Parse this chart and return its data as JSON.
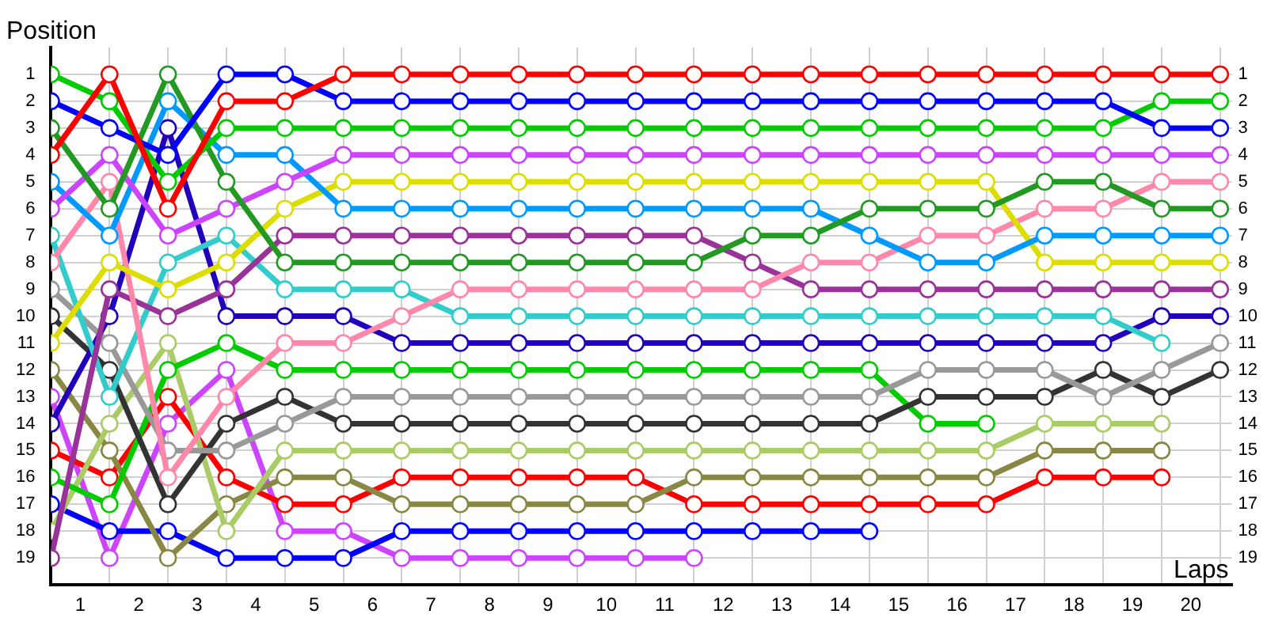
{
  "chart_data": {
    "type": "line",
    "xlabel": "Laps",
    "ylabel": "Position",
    "x": [
      0,
      1,
      2,
      3,
      4,
      5,
      6,
      7,
      8,
      9,
      10,
      11,
      12,
      13,
      14,
      15,
      16,
      17,
      18,
      19,
      20
    ],
    "xlim": [
      0,
      20.2
    ],
    "xticks": [
      {
        "value": 0,
        "label": null
      },
      {
        "value": 0.5,
        "label": "1"
      },
      {
        "value": 1,
        "label": null
      },
      {
        "value": 1.5,
        "label": "2"
      },
      {
        "value": 2,
        "label": null
      },
      {
        "value": 2.5,
        "label": "3"
      },
      {
        "value": 3,
        "label": null
      },
      {
        "value": 3.5,
        "label": "4"
      },
      {
        "value": 4,
        "label": null
      },
      {
        "value": 4.5,
        "label": "5"
      },
      {
        "value": 5,
        "label": null
      },
      {
        "value": 5.5,
        "label": "6"
      },
      {
        "value": 6,
        "label": null
      },
      {
        "value": 6.5,
        "label": "7"
      },
      {
        "value": 7,
        "label": null
      },
      {
        "value": 7.5,
        "label": "8"
      },
      {
        "value": 8,
        "label": null
      },
      {
        "value": 8.5,
        "label": "9"
      },
      {
        "value": 9,
        "label": null
      },
      {
        "value": 9.5,
        "label": "10"
      },
      {
        "value": 10,
        "label": null
      },
      {
        "value": 10.5,
        "label": "11"
      },
      {
        "value": 11,
        "label": null
      },
      {
        "value": 11.5,
        "label": "12"
      },
      {
        "value": 12,
        "label": null
      },
      {
        "value": 12.5,
        "label": "13"
      },
      {
        "value": 13,
        "label": null
      },
      {
        "value": 13.5,
        "label": "14"
      },
      {
        "value": 14,
        "label": null
      },
      {
        "value": 14.5,
        "label": "15"
      },
      {
        "value": 15,
        "label": null
      },
      {
        "value": 15.5,
        "label": "16"
      },
      {
        "value": 16,
        "label": null
      },
      {
        "value": 16.5,
        "label": "17"
      },
      {
        "value": 17,
        "label": null
      },
      {
        "value": 17.5,
        "label": "18"
      },
      {
        "value": 18,
        "label": null
      },
      {
        "value": 18.5,
        "label": "19"
      },
      {
        "value": 19,
        "label": null
      },
      {
        "value": 19.5,
        "label": "20"
      },
      {
        "value": 20,
        "label": null
      }
    ],
    "ylim": [
      20,
      0
    ],
    "yticks": [
      1,
      2,
      3,
      4,
      5,
      6,
      7,
      8,
      9,
      10,
      11,
      12,
      13,
      14,
      15,
      16,
      17,
      18,
      19
    ],
    "y2lim": [
      20,
      0
    ],
    "y2ticks": [
      1,
      2,
      3,
      4,
      5,
      6,
      7,
      8,
      9,
      10,
      11,
      12,
      13,
      14,
      15,
      16,
      17,
      18,
      19
    ],
    "grid": true,
    "legend": false,
    "marker": "circle",
    "line_style": "solid",
    "series": [
      {
        "color": "#ff0000",
        "values": [
          4,
          1,
          6,
          2,
          2,
          1,
          1,
          1,
          1,
          1,
          1,
          1,
          1,
          1,
          1,
          1,
          1,
          1,
          1,
          1,
          1
        ]
      },
      {
        "color": "#0000ff",
        "values": [
          2,
          3,
          4,
          1,
          1,
          2,
          2,
          2,
          2,
          2,
          2,
          2,
          2,
          2,
          2,
          2,
          2,
          2,
          2,
          3,
          3
        ]
      },
      {
        "color": "#00cc00",
        "values": [
          1,
          2,
          5,
          3,
          3,
          3,
          3,
          3,
          3,
          3,
          3,
          3,
          3,
          3,
          3,
          3,
          3,
          3,
          3,
          2,
          2
        ]
      },
      {
        "color": "#229922",
        "values": [
          3,
          6,
          1,
          5,
          8,
          8,
          8,
          8,
          8,
          8,
          8,
          8,
          7,
          7,
          6,
          6,
          6,
          5,
          5,
          6,
          6
        ]
      },
      {
        "color": "#cc44ff",
        "values": [
          6,
          4,
          7,
          6,
          5,
          4,
          4,
          4,
          4,
          4,
          4,
          4,
          4,
          4,
          4,
          4,
          4,
          4,
          4,
          4,
          4
        ]
      },
      {
        "color": "#0099ff",
        "values": [
          5,
          7,
          2,
          4,
          4,
          6,
          6,
          6,
          6,
          6,
          6,
          6,
          6,
          6,
          7,
          8,
          8,
          7,
          7,
          7,
          7
        ]
      },
      {
        "color": "#dddd00",
        "values": [
          11,
          8,
          9,
          8,
          6,
          5,
          5,
          5,
          5,
          5,
          5,
          5,
          5,
          5,
          5,
          5,
          5,
          8,
          8,
          8,
          8
        ]
      },
      {
        "color": "#ff88aa",
        "values": [
          8,
          5,
          16,
          13,
          11,
          11,
          10,
          9,
          9,
          9,
          9,
          9,
          9,
          8,
          8,
          7,
          7,
          6,
          6,
          5,
          5
        ]
      },
      {
        "color": "#993399",
        "values": [
          19,
          9,
          10,
          9,
          7,
          7,
          7,
          7,
          7,
          7,
          7,
          7,
          8,
          9,
          9,
          9,
          9,
          9,
          9,
          9,
          9
        ]
      },
      {
        "color": "#33cccc",
        "values": [
          7,
          13,
          8,
          7,
          9,
          9,
          9,
          10,
          10,
          10,
          10,
          10,
          10,
          10,
          10,
          10,
          10,
          10,
          10,
          11,
          null
        ]
      },
      {
        "color": "#2200bb",
        "values": [
          14,
          10,
          3,
          10,
          10,
          10,
          11,
          11,
          11,
          11,
          11,
          11,
          11,
          11,
          11,
          11,
          11,
          11,
          11,
          10,
          10
        ]
      },
      {
        "color": "#999999",
        "values": [
          9,
          11,
          15,
          15,
          14,
          13,
          13,
          13,
          13,
          13,
          13,
          13,
          13,
          13,
          13,
          12,
          12,
          12,
          13,
          12,
          11
        ]
      },
      {
        "color": "#333333",
        "values": [
          10,
          12,
          17,
          14,
          13,
          14,
          14,
          14,
          14,
          14,
          14,
          14,
          14,
          14,
          14,
          13,
          13,
          13,
          12,
          13,
          12
        ]
      },
      {
        "color": "#00cc00",
        "values": [
          16,
          17,
          12,
          11,
          12,
          12,
          12,
          12,
          12,
          12,
          12,
          12,
          12,
          12,
          12,
          14,
          14,
          null,
          null,
          null,
          null
        ]
      },
      {
        "color": "#aacc66",
        "values": [
          18,
          14,
          11,
          18,
          15,
          15,
          15,
          15,
          15,
          15,
          15,
          15,
          15,
          15,
          15,
          15,
          15,
          14,
          14,
          14,
          null
        ]
      },
      {
        "color": "#888844",
        "values": [
          12,
          15,
          19,
          17,
          16,
          16,
          17,
          17,
          17,
          17,
          17,
          16,
          16,
          16,
          16,
          16,
          16,
          15,
          15,
          15,
          null
        ]
      },
      {
        "color": "#ff0000",
        "values": [
          15,
          16,
          13,
          16,
          17,
          17,
          16,
          16,
          16,
          16,
          16,
          17,
          17,
          17,
          17,
          17,
          17,
          16,
          16,
          16,
          null
        ]
      },
      {
        "color": "#0000ff",
        "values": [
          17,
          18,
          18,
          19,
          19,
          19,
          18,
          18,
          18,
          18,
          18,
          18,
          18,
          18,
          18,
          null,
          null,
          null,
          null,
          null,
          null
        ]
      },
      {
        "color": "#cc44ff",
        "values": [
          13,
          19,
          14,
          12,
          18,
          18,
          19,
          19,
          19,
          19,
          19,
          19,
          null,
          null,
          null,
          null,
          null,
          null,
          null,
          null,
          null
        ]
      }
    ]
  }
}
